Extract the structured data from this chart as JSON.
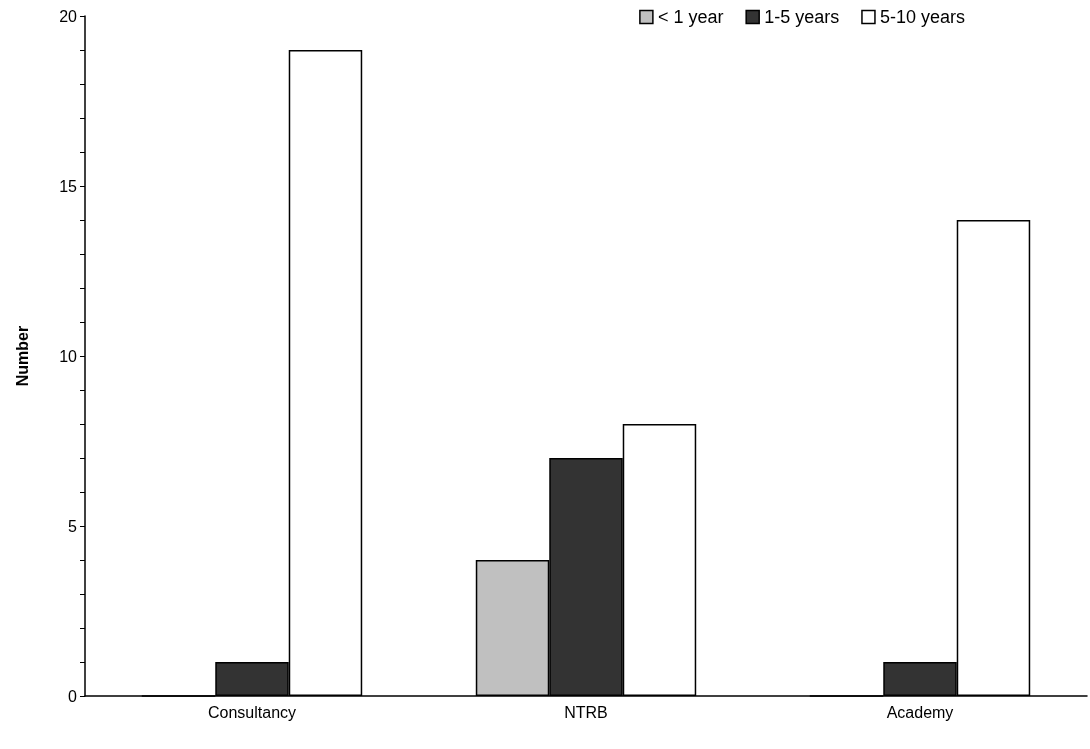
{
  "chart_data": {
    "type": "bar",
    "ylabel": "Number",
    "categories": [
      "Consultancy",
      "NTRB",
      "Academy"
    ],
    "series": [
      {
        "name": "< 1 year",
        "color": "#c0c0c0",
        "values": [
          0,
          4,
          0
        ]
      },
      {
        "name": "1-5 years",
        "color": "#333333",
        "values": [
          1,
          7,
          1
        ]
      },
      {
        "name": "5-10 years",
        "color": "#ffffff",
        "values": [
          19,
          8,
          14
        ]
      }
    ],
    "ylim": [
      0,
      20
    ],
    "yticks": [
      0,
      {
        "value": 1,
        "label": null
      },
      {
        "value": 2,
        "label": null
      },
      {
        "value": 3,
        "label": null
      },
      {
        "value": 4,
        "label": null
      },
      5,
      {
        "value": 6,
        "label": null
      },
      {
        "value": 7,
        "label": null
      },
      {
        "value": 8,
        "label": null
      },
      {
        "value": 9,
        "label": null
      },
      10,
      {
        "value": 11,
        "label": null
      },
      {
        "value": 12,
        "label": null
      },
      {
        "value": 13,
        "label": null
      },
      {
        "value": 14,
        "label": null
      },
      15,
      {
        "value": 16,
        "label": null
      },
      {
        "value": 17,
        "label": null
      },
      {
        "value": 18,
        "label": null
      },
      {
        "value": 19,
        "label": null
      },
      20
    ],
    "grid": false,
    "legend": "top right"
  }
}
